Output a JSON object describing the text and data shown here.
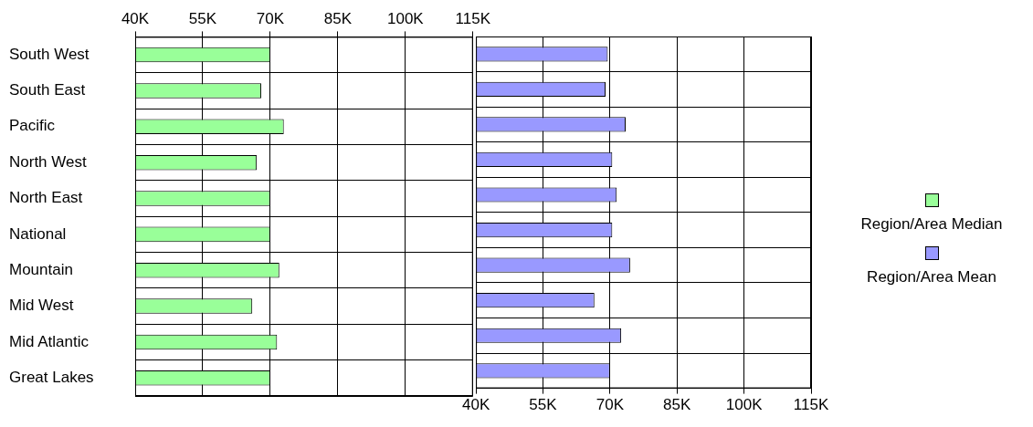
{
  "chart_data": [
    {
      "type": "bar",
      "orientation": "horizontal",
      "categories": [
        "South West",
        "South East",
        "Pacific",
        "North West",
        "North East",
        "National",
        "Mountain",
        "Mid West",
        "Mid Atlantic",
        "Great Lakes"
      ],
      "series": [
        {
          "name": "Region/Area Median",
          "color": "#99ff99",
          "values": [
            70000,
            68000,
            73000,
            67000,
            70000,
            70000,
            72000,
            66000,
            71500,
            70000
          ]
        }
      ],
      "xlim": [
        40000,
        115000
      ],
      "xticks": [
        {
          "value": 40000,
          "label": "40K"
        },
        {
          "value": 55000,
          "label": "55K"
        },
        {
          "value": 70000,
          "label": "70K"
        },
        {
          "value": 85000,
          "label": "85K"
        },
        {
          "value": 100000,
          "label": "100K"
        },
        {
          "value": 115000,
          "label": "115K"
        }
      ],
      "grid": true,
      "legend": "right"
    },
    {
      "type": "bar",
      "orientation": "horizontal",
      "categories": [
        null,
        null,
        null,
        null,
        null,
        null,
        null,
        null,
        null,
        null
      ],
      "series": [
        {
          "name": "Region/Area Mean",
          "color": "#9999ff",
          "values": [
            69500,
            69000,
            73500,
            70500,
            71500,
            70500,
            74500,
            66500,
            72500,
            70000
          ]
        }
      ],
      "xlim": [
        40000,
        115000
      ],
      "xticks": [
        {
          "value": 40000,
          "label": "40K"
        },
        {
          "value": 55000,
          "label": "55K"
        },
        {
          "value": 70000,
          "label": "70K"
        },
        {
          "value": 85000,
          "label": "85K"
        },
        {
          "value": 100000,
          "label": "100K"
        },
        {
          "value": 115000,
          "label": "115K"
        }
      ],
      "grid": true,
      "legend": "right"
    }
  ]
}
